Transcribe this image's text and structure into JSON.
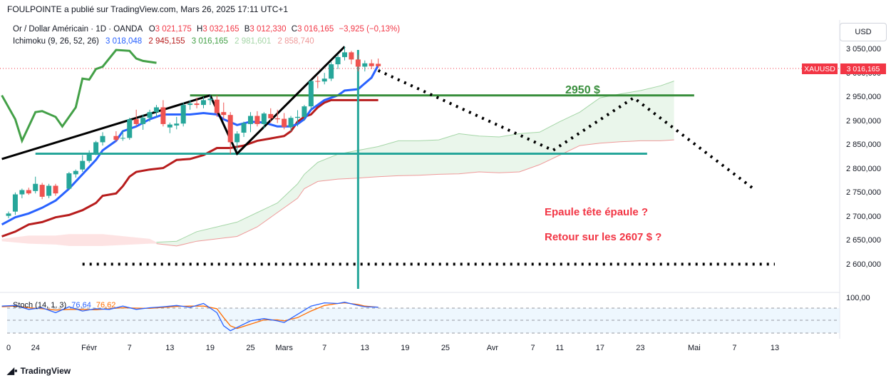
{
  "publisher": "FOULPOINTE a publié sur TradingView.com, Mars 26, 2025 17:11 UTC+1",
  "legend": {
    "symbol": "Or / Dollar Américain · 1D · OANDA",
    "o_label": "O",
    "o": "3 021,175",
    "h_label": "H",
    "h": "3 032,165",
    "b_label": "B",
    "b": "3 012,330",
    "c_label": "C",
    "c": "3 016,165",
    "change": "−3,925 (−0,13%)",
    "ichimoku_name": "Ichimoku (9, 26, 52, 26)",
    "ichimoku_values": [
      "3 018,048",
      "2 945,155",
      "3 016,165",
      "2 981,601",
      "2 858,740"
    ],
    "ichimoku_colors": [
      "#2962ff",
      "#b71c1c",
      "#43a047",
      "#a5d6a7",
      "#ef9a9a"
    ]
  },
  "currency": "USD",
  "price_tag": {
    "symbol": "XAUUSD",
    "price": "3 016,165"
  },
  "annotations": {
    "level": "2950 $",
    "pattern": "Epaule tête épaule ?",
    "target": "Retour sur les 2607 $ ?"
  },
  "stoch": {
    "name": "Stoch (14, 1, 3)",
    "k": "76,64",
    "d": "76,62",
    "colors": [
      "#2962ff",
      "#ff6d00"
    ]
  },
  "brand": "TradingView",
  "colors": {
    "bull": "#26a69a",
    "bear": "#ef5350",
    "tenkan": "#2962ff",
    "kijun": "#b71c1c",
    "chikou": "#43a047",
    "cloud": "#e8f5e9",
    "hline": "#26a69a",
    "greenline": "#388e3c"
  },
  "chart_data": {
    "type": "candlestick",
    "y_ticks": [
      "3 050,000",
      "3 000,000",
      "2 950,000",
      "2 900,000",
      "2 850,000",
      "2 800,000",
      "2 750,000",
      "2 700,000",
      "2 650,000",
      "2 600,000"
    ],
    "y_ticks_values": [
      3050,
      3000,
      2950,
      2900,
      2850,
      2800,
      2750,
      2700,
      2650,
      2600
    ],
    "stoch_tick": "100,00",
    "x_ticks": [
      {
        "label": "0",
        "day": 0
      },
      {
        "label": "24",
        "day": 4
      },
      {
        "label": "Févr",
        "day": 12
      },
      {
        "label": "7",
        "day": 18
      },
      {
        "label": "13",
        "day": 24
      },
      {
        "label": "19",
        "day": 30
      },
      {
        "label": "25",
        "day": 36
      },
      {
        "label": "Mars",
        "day": 41
      },
      {
        "label": "7",
        "day": 47
      },
      {
        "label": "13",
        "day": 53
      },
      {
        "label": "19",
        "day": 59
      },
      {
        "label": "25",
        "day": 65
      },
      {
        "label": "Avr",
        "day": 72
      },
      {
        "label": "7",
        "day": 78
      },
      {
        "label": "11",
        "day": 82
      },
      {
        "label": "17",
        "day": 88
      },
      {
        "label": "23",
        "day": 94
      },
      {
        "label": "Mai",
        "day": 102
      },
      {
        "label": "7",
        "day": 108
      },
      {
        "label": "13",
        "day": 114
      }
    ],
    "candles": [
      {
        "d": 0,
        "o": 2703,
        "h": 2712,
        "l": 2698,
        "c": 2708
      },
      {
        "d": 1,
        "o": 2712,
        "h": 2752,
        "l": 2705,
        "c": 2748
      },
      {
        "d": 2,
        "o": 2748,
        "h": 2760,
        "l": 2740,
        "c": 2757
      },
      {
        "d": 3,
        "o": 2757,
        "h": 2762,
        "l": 2747,
        "c": 2750
      },
      {
        "d": 4,
        "o": 2755,
        "h": 2785,
        "l": 2750,
        "c": 2770
      },
      {
        "d": 5,
        "o": 2768,
        "h": 2772,
        "l": 2738,
        "c": 2743
      },
      {
        "d": 6,
        "o": 2745,
        "h": 2770,
        "l": 2740,
        "c": 2766
      },
      {
        "d": 7,
        "o": 2766,
        "h": 2770,
        "l": 2745,
        "c": 2750
      },
      {
        "d": 9,
        "o": 2760,
        "h": 2795,
        "l": 2758,
        "c": 2792
      },
      {
        "d": 10,
        "o": 2790,
        "h": 2800,
        "l": 2783,
        "c": 2797
      },
      {
        "d": 11,
        "o": 2800,
        "h": 2830,
        "l": 2795,
        "c": 2818
      },
      {
        "d": 12,
        "o": 2818,
        "h": 2840,
        "l": 2814,
        "c": 2835
      },
      {
        "d": 13,
        "o": 2835,
        "h": 2860,
        "l": 2830,
        "c": 2857
      },
      {
        "d": 14,
        "o": 2857,
        "h": 2878,
        "l": 2850,
        "c": 2870
      },
      {
        "d": 16,
        "o": 2870,
        "h": 2880,
        "l": 2858,
        "c": 2862
      },
      {
        "d": 17,
        "o": 2865,
        "h": 2882,
        "l": 2860,
        "c": 2866
      },
      {
        "d": 18,
        "o": 2866,
        "h": 2908,
        "l": 2862,
        "c": 2905
      },
      {
        "d": 19,
        "o": 2905,
        "h": 2925,
        "l": 2890,
        "c": 2895
      },
      {
        "d": 20,
        "o": 2895,
        "h": 2915,
        "l": 2883,
        "c": 2908
      },
      {
        "d": 21,
        "o": 2908,
        "h": 2925,
        "l": 2900,
        "c": 2920
      },
      {
        "d": 22,
        "o": 2920,
        "h": 2935,
        "l": 2910,
        "c": 2930
      },
      {
        "d": 23,
        "o": 2930,
        "h": 2945,
        "l": 2890,
        "c": 2895
      },
      {
        "d": 24,
        "o": 2888,
        "h": 2898,
        "l": 2876,
        "c": 2894
      },
      {
        "d": 25,
        "o": 2892,
        "h": 2910,
        "l": 2884,
        "c": 2896
      },
      {
        "d": 26,
        "o": 2896,
        "h": 2940,
        "l": 2890,
        "c": 2935
      },
      {
        "d": 27,
        "o": 2935,
        "h": 2945,
        "l": 2925,
        "c": 2938
      },
      {
        "d": 28,
        "o": 2938,
        "h": 2950,
        "l": 2928,
        "c": 2935
      },
      {
        "d": 29,
        "o": 2935,
        "h": 2952,
        "l": 2928,
        "c": 2945
      },
      {
        "d": 30,
        "o": 2945,
        "h": 2956,
        "l": 2935,
        "c": 2948
      },
      {
        "d": 31,
        "o": 2946,
        "h": 2955,
        "l": 2910,
        "c": 2918
      },
      {
        "d": 32,
        "o": 2920,
        "h": 2940,
        "l": 2905,
        "c": 2914
      },
      {
        "d": 33,
        "o": 2914,
        "h": 2920,
        "l": 2832,
        "c": 2857
      },
      {
        "d": 34,
        "o": 2857,
        "h": 2880,
        "l": 2840,
        "c": 2875
      },
      {
        "d": 35,
        "o": 2877,
        "h": 2900,
        "l": 2868,
        "c": 2897
      },
      {
        "d": 36,
        "o": 2895,
        "h": 2920,
        "l": 2878,
        "c": 2912
      },
      {
        "d": 37,
        "o": 2912,
        "h": 2922,
        "l": 2890,
        "c": 2895
      },
      {
        "d": 38,
        "o": 2895,
        "h": 2920,
        "l": 2886,
        "c": 2917
      },
      {
        "d": 39,
        "o": 2916,
        "h": 2928,
        "l": 2898,
        "c": 2907
      },
      {
        "d": 40,
        "o": 2907,
        "h": 2925,
        "l": 2897,
        "c": 2905
      },
      {
        "d": 41,
        "o": 2906,
        "h": 2918,
        "l": 2884,
        "c": 2889
      },
      {
        "d": 42,
        "o": 2889,
        "h": 2912,
        "l": 2880,
        "c": 2908
      },
      {
        "d": 43,
        "o": 2908,
        "h": 2924,
        "l": 2890,
        "c": 2910
      },
      {
        "d": 44,
        "o": 2910,
        "h": 2935,
        "l": 2902,
        "c": 2932
      },
      {
        "d": 45,
        "o": 2932,
        "h": 2988,
        "l": 2925,
        "c": 2985
      },
      {
        "d": 46,
        "o": 2985,
        "h": 2995,
        "l": 2970,
        "c": 2984
      },
      {
        "d": 47,
        "o": 2984,
        "h": 3002,
        "l": 2978,
        "c": 2990
      },
      {
        "d": 48,
        "o": 2990,
        "h": 3025,
        "l": 2985,
        "c": 3020
      },
      {
        "d": 49,
        "o": 3020,
        "h": 3040,
        "l": 3010,
        "c": 3035
      },
      {
        "d": 50,
        "o": 3035,
        "h": 3057,
        "l": 3028,
        "c": 3045
      },
      {
        "d": 51,
        "o": 3045,
        "h": 3048,
        "l": 3020,
        "c": 3030
      },
      {
        "d": 52,
        "o": 3030,
        "h": 3040,
        "l": 3005,
        "c": 3015
      },
      {
        "d": 53,
        "o": 3015,
        "h": 3028,
        "l": 3005,
        "c": 3022
      },
      {
        "d": 54,
        "o": 3022,
        "h": 3030,
        "l": 3010,
        "c": 3016
      },
      {
        "d": 55,
        "o": 3021,
        "h": 3032,
        "l": 3012,
        "c": 3016
      }
    ],
    "tenkan": [
      [
        -1,
        2685
      ],
      [
        1,
        2700
      ],
      [
        3,
        2708
      ],
      [
        5,
        2720
      ],
      [
        7,
        2735
      ],
      [
        9,
        2760
      ],
      [
        11,
        2790
      ],
      [
        13,
        2820
      ],
      [
        14,
        2840
      ],
      [
        16,
        2860
      ],
      [
        17,
        2880
      ],
      [
        18,
        2885
      ],
      [
        19,
        2890
      ],
      [
        21,
        2905
      ],
      [
        23,
        2915
      ],
      [
        25,
        2915
      ],
      [
        27,
        2915
      ],
      [
        29,
        2918
      ],
      [
        31,
        2915
      ],
      [
        32,
        2905
      ],
      [
        34,
        2893
      ],
      [
        36,
        2900
      ],
      [
        38,
        2898
      ],
      [
        40,
        2890
      ],
      [
        42,
        2890
      ],
      [
        43,
        2895
      ],
      [
        44,
        2905
      ],
      [
        45,
        2925
      ],
      [
        47,
        2945
      ],
      [
        49,
        2955
      ],
      [
        50,
        2965
      ],
      [
        52,
        2968
      ],
      [
        54,
        2992
      ],
      [
        55,
        3018
      ]
    ],
    "kijun": [
      [
        -1,
        2660
      ],
      [
        1,
        2670
      ],
      [
        3,
        2685
      ],
      [
        5,
        2690
      ],
      [
        7,
        2700
      ],
      [
        9,
        2705
      ],
      [
        11,
        2715
      ],
      [
        13,
        2730
      ],
      [
        14,
        2745
      ],
      [
        16,
        2750
      ],
      [
        17,
        2765
      ],
      [
        18,
        2785
      ],
      [
        19,
        2795
      ],
      [
        21,
        2800
      ],
      [
        23,
        2803
      ],
      [
        25,
        2820
      ],
      [
        27,
        2822
      ],
      [
        29,
        2830
      ],
      [
        31,
        2845
      ],
      [
        33,
        2845
      ],
      [
        35,
        2850
      ],
      [
        37,
        2860
      ],
      [
        39,
        2865
      ],
      [
        41,
        2870
      ],
      [
        42,
        2880
      ],
      [
        43,
        2900
      ],
      [
        44,
        2910
      ],
      [
        45,
        2915
      ],
      [
        46,
        2930
      ],
      [
        47,
        2940
      ],
      [
        48,
        2945
      ],
      [
        55,
        2945
      ]
    ],
    "chikou": [
      [
        -1,
        2955
      ],
      [
        1,
        2905
      ],
      [
        2,
        2860
      ],
      [
        4,
        2920
      ],
      [
        5,
        2922
      ],
      [
        7,
        2910
      ],
      [
        8,
        2890
      ],
      [
        9,
        2910
      ],
      [
        10,
        2930
      ],
      [
        11,
        2990
      ],
      [
        12,
        2988
      ],
      [
        13,
        3010
      ],
      [
        14,
        3015
      ],
      [
        16,
        3050
      ],
      [
        18,
        3048
      ],
      [
        19,
        3032
      ],
      [
        20,
        3027
      ],
      [
        22,
        3023
      ]
    ],
    "spanA": [
      [
        22,
        2648
      ],
      [
        25,
        2650
      ],
      [
        28,
        2670
      ],
      [
        31,
        2680
      ],
      [
        34,
        2690
      ],
      [
        37,
        2710
      ],
      [
        40,
        2730
      ],
      [
        43,
        2770
      ],
      [
        44,
        2790
      ],
      [
        46,
        2815
      ],
      [
        49,
        2832
      ],
      [
        52,
        2840
      ],
      [
        55,
        2848
      ],
      [
        58,
        2860
      ],
      [
        61,
        2860
      ],
      [
        64,
        2862
      ],
      [
        67,
        2875
      ],
      [
        70,
        2870
      ],
      [
        73,
        2868
      ],
      [
        76,
        2875
      ],
      [
        79,
        2878
      ],
      [
        82,
        2900
      ],
      [
        85,
        2920
      ],
      [
        88,
        2950
      ],
      [
        91,
        2958
      ],
      [
        94,
        2965
      ],
      [
        97,
        2975
      ],
      [
        99,
        2985
      ]
    ],
    "spanB": [
      [
        22,
        2645
      ],
      [
        25,
        2640
      ],
      [
        28,
        2650
      ],
      [
        31,
        2655
      ],
      [
        34,
        2660
      ],
      [
        37,
        2680
      ],
      [
        40,
        2710
      ],
      [
        43,
        2740
      ],
      [
        44,
        2760
      ],
      [
        46,
        2775
      ],
      [
        49,
        2780
      ],
      [
        52,
        2782
      ],
      [
        55,
        2785
      ],
      [
        58,
        2787
      ],
      [
        61,
        2788
      ],
      [
        64,
        2790
      ],
      [
        67,
        2791
      ],
      [
        70,
        2795
      ],
      [
        73,
        2793
      ],
      [
        76,
        2795
      ],
      [
        79,
        2810
      ],
      [
        82,
        2830
      ],
      [
        85,
        2850
      ],
      [
        88,
        2855
      ],
      [
        91,
        2858
      ],
      [
        94,
        2860
      ],
      [
        97,
        2860
      ],
      [
        99,
        2862
      ]
    ],
    "redcloud_top": [
      [
        -1,
        2655
      ],
      [
        3,
        2662
      ],
      [
        7,
        2662
      ],
      [
        9,
        2665
      ],
      [
        14,
        2665
      ],
      [
        21,
        2655
      ],
      [
        22,
        2648
      ]
    ],
    "redcloud_bot": [
      [
        -1,
        2650
      ],
      [
        3,
        2645
      ],
      [
        7,
        2643
      ],
      [
        9,
        2640
      ],
      [
        14,
        2640
      ],
      [
        21,
        2645
      ],
      [
        22,
        2645
      ]
    ],
    "stoch_k": [
      [
        -1,
        80
      ],
      [
        1,
        82
      ],
      [
        3,
        70
      ],
      [
        5,
        75
      ],
      [
        7,
        60
      ],
      [
        9,
        78
      ],
      [
        11,
        65
      ],
      [
        13,
        72
      ],
      [
        15,
        70
      ],
      [
        17,
        80
      ],
      [
        19,
        70
      ],
      [
        21,
        75
      ],
      [
        23,
        78
      ],
      [
        25,
        82
      ],
      [
        27,
        76
      ],
      [
        29,
        88
      ],
      [
        31,
        60
      ],
      [
        32,
        20
      ],
      [
        33,
        5
      ],
      [
        34,
        15
      ],
      [
        36,
        35
      ],
      [
        38,
        42
      ],
      [
        40,
        35
      ],
      [
        41,
        30
      ],
      [
        43,
        55
      ],
      [
        45,
        80
      ],
      [
        47,
        90
      ],
      [
        49,
        88
      ],
      [
        50,
        92
      ],
      [
        52,
        82
      ],
      [
        53,
        78
      ],
      [
        55,
        76.64
      ]
    ],
    "stoch_d": [
      [
        -1,
        78
      ],
      [
        1,
        80
      ],
      [
        3,
        75
      ],
      [
        5,
        72
      ],
      [
        7,
        68
      ],
      [
        9,
        70
      ],
      [
        11,
        70
      ],
      [
        13,
        69
      ],
      [
        15,
        72
      ],
      [
        17,
        75
      ],
      [
        19,
        74
      ],
      [
        21,
        73
      ],
      [
        23,
        76
      ],
      [
        25,
        79
      ],
      [
        27,
        80
      ],
      [
        29,
        80
      ],
      [
        31,
        72
      ],
      [
        32,
        45
      ],
      [
        33,
        20
      ],
      [
        34,
        12
      ],
      [
        36,
        25
      ],
      [
        38,
        38
      ],
      [
        40,
        38
      ],
      [
        41,
        35
      ],
      [
        43,
        45
      ],
      [
        45,
        65
      ],
      [
        47,
        82
      ],
      [
        49,
        88
      ],
      [
        50,
        90
      ],
      [
        52,
        85
      ],
      [
        53,
        80
      ],
      [
        55,
        76.62
      ]
    ],
    "trend_lines": [
      {
        "style": "solid",
        "color": "#000000",
        "points": [
          [
            -1,
            2822
          ],
          [
            30,
            2955
          ]
        ]
      },
      {
        "style": "solid",
        "color": "#000000",
        "points": [
          [
            30,
            2955
          ],
          [
            34,
            2833
          ],
          [
            50,
            3057
          ]
        ]
      },
      {
        "style": "dotted",
        "color": "#000000",
        "points": [
          [
            55,
            3007
          ],
          [
            81,
            2840
          ],
          [
            93,
            2950
          ],
          [
            111,
            2758
          ]
        ]
      },
      {
        "style": "dotted",
        "color": "#000000",
        "points": [
          [
            11,
            2602
          ],
          [
            114,
            2602
          ]
        ]
      }
    ],
    "horizontal_lines": [
      {
        "y": 2955,
        "from": 27,
        "to": 102,
        "color": "#388e3c"
      },
      {
        "y": 2833,
        "from": 4,
        "to": 95,
        "color": "#26a69a"
      }
    ],
    "vertical_line": {
      "day": 52,
      "color": "#26a69a"
    }
  }
}
